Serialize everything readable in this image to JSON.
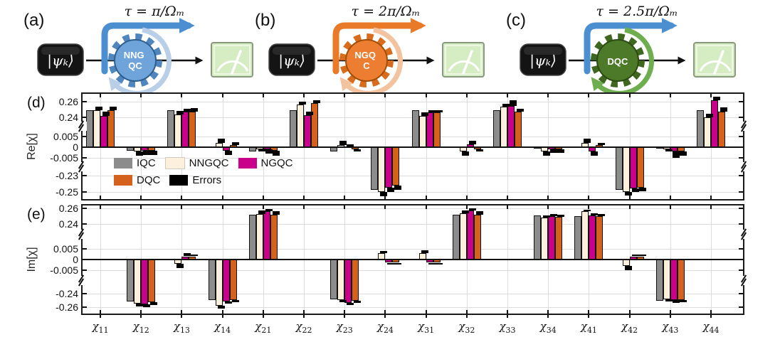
{
  "figure": {
    "background": "#ffffff"
  },
  "diagrams": [
    {
      "label": "(a)",
      "tau": "τ = π/Ωₘ",
      "state": "|ψₖ⟩",
      "gear_lines": [
        "NNG",
        "QC"
      ],
      "colors": {
        "gear": "#6fa4da",
        "teeth": "#4f86bd",
        "edge": "#2e5f8f",
        "arrow": "#4c8fd0",
        "swirl": "#b9cfe8"
      }
    },
    {
      "label": "(b)",
      "tau": "τ = 2π/Ωₘ",
      "state": "|ψₖ⟩",
      "gear_lines": [
        "NGQ",
        "C"
      ],
      "colors": {
        "gear": "#ed7d31",
        "teeth": "#d96c1c",
        "edge": "#a14e07",
        "arrow": "#e87a28",
        "swirl": "#f3c3a0"
      }
    },
    {
      "label": "(c)",
      "tau": "τ = 2.5π/Ωₘ",
      "state": "|ψₖ⟩",
      "gear_lines": [
        "DQC"
      ],
      "colors": {
        "gear": "#4d7a28",
        "teeth": "#3f671f",
        "edge": "#2c4a13",
        "arrow": "#4c8fd0",
        "swirl": "#6fae4e"
      }
    }
  ],
  "legend": {
    "rows": [
      [
        {
          "label": "IQC",
          "color": "#8c8c8c"
        },
        {
          "label": "NNGQC",
          "color": "#fdf0dc"
        },
        {
          "label": "NGQC",
          "color": "#c9008a"
        }
      ],
      [
        {
          "label": "DQC",
          "color": "#d4611c"
        },
        {
          "label": "Errors",
          "color": "#000000"
        }
      ]
    ]
  },
  "panels": [
    {
      "id": "d",
      "label": "(d)",
      "ylabel": "Re[χ]",
      "chart_data": {
        "type": "bar",
        "categories": [
          "χ11",
          "χ12",
          "χ13",
          "χ14",
          "χ21",
          "χ22",
          "χ23",
          "χ24",
          "χ31",
          "χ32",
          "χ33",
          "χ34",
          "χ41",
          "χ42",
          "χ43",
          "χ44"
        ],
        "broken_axis_segments": [
          [
            0.2282,
            0.27
          ],
          [
            -0.00933,
            0.00967
          ],
          [
            -0.2587,
            -0.2196
          ]
        ],
        "yticks": [
          {
            "v": 0.26,
            "label": "0.26"
          },
          {
            "v": 0.24,
            "label": "0.24"
          },
          {
            "v": 0.005,
            "label": "0.005"
          },
          {
            "v": 0,
            "label": "0"
          },
          {
            "v": -0.005,
            "label": "-0.005"
          },
          {
            "v": -0.23,
            "label": "-0.23"
          },
          {
            "v": -0.25,
            "label": "-0.25"
          }
        ],
        "grid": true,
        "legend_position": "inside-left",
        "error_series_name": "Errors",
        "error_color": "#000000",
        "series": [
          {
            "name": "IQC",
            "color": "#8c8c8c",
            "values": [
              0.249,
              -0.0015,
              0.249,
              0.0005,
              -0.002,
              0.249,
              -0.002,
              -0.247,
              0.249,
              0.0005,
              0.249,
              -0.0005,
              0.0005,
              -0.247,
              -0.0005,
              0.249
            ],
            "errors": [
              0,
              0,
              0,
              0,
              0,
              0,
              0,
              0,
              0,
              0,
              0,
              0,
              0,
              0,
              0,
              0
            ]
          },
          {
            "name": "NNGQC",
            "color": "#fdf0dc",
            "values": [
              0.249,
              -0.002,
              0.244,
              0.002,
              -0.001,
              0.256,
              0.001,
              -0.25,
              0.242,
              -0.002,
              0.254,
              -0.002,
              0.002,
              -0.25,
              -0.001,
              0.24
            ],
            "errors": [
              0.005,
              -0.002,
              0.004,
              0.002,
              -0.001,
              0.004,
              0.002,
              -0.005,
              0.004,
              -0.002,
              0.003,
              -0.002,
              0.002,
              -0.004,
              -0.001,
              0.005
            ]
          },
          {
            "name": "NGQC",
            "color": "#c9008a",
            "values": [
              0.242,
              -0.0015,
              0.247,
              -0.0015,
              -0.001,
              0.243,
              0.0005,
              -0.245,
              0.246,
              0.0015,
              0.255,
              -0.001,
              -0.002,
              -0.246,
              -0.002,
              0.262
            ],
            "errors": [
              0.005,
              -0.002,
              0.004,
              -0.002,
              -0.002,
              0.004,
              0.001,
              -0.005,
              0.003,
              0.0015,
              0.007,
              -0.0015,
              -0.002,
              -0.004,
              -0.003,
              0.004
            ]
          },
          {
            "name": "DQC",
            "color": "#d4611c",
            "values": [
              0.249,
              -0.0015,
              0.247,
              0.001,
              -0.0015,
              0.258,
              -0.001,
              -0.242,
              0.246,
              -0.001,
              0.247,
              -0.001,
              0.001,
              -0.245,
              -0.002,
              0.247
            ],
            "errors": [
              0.005,
              -0.002,
              0.005,
              0.0015,
              -0.0025,
              0.004,
              -0.001,
              -0.005,
              0.003,
              -0.001,
              0.004,
              -0.0015,
              0.001,
              -0.004,
              -0.002,
              0.006
            ]
          }
        ]
      }
    },
    {
      "id": "e",
      "label": "(e)",
      "ylabel": "Im[χ]",
      "chart_data": {
        "type": "bar",
        "categories": [
          "χ11",
          "χ12",
          "χ13",
          "χ14",
          "χ21",
          "χ22",
          "χ23",
          "χ24",
          "χ31",
          "χ32",
          "χ33",
          "χ34",
          "χ41",
          "χ42",
          "χ43",
          "χ44"
        ],
        "broken_axis_segments": [
          [
            0.2264,
            0.2636
          ],
          [
            -0.01,
            0.01167
          ],
          [
            -0.2695,
            -0.2211
          ]
        ],
        "yticks": [
          {
            "v": 0.26,
            "label": "0.26"
          },
          {
            "v": 0.24,
            "label": "0.24"
          },
          {
            "v": 0.005,
            "label": "0.005"
          },
          {
            "v": 0,
            "label": "0"
          },
          {
            "v": -0.005,
            "label": "-0.005"
          },
          {
            "v": -0.24,
            "label": "-0.24"
          },
          {
            "v": -0.26,
            "label": "-0.26"
          }
        ],
        "grid": true,
        "legend_position": "none",
        "error_series_name": "Errors",
        "error_color": "#000000",
        "series": [
          {
            "name": "IQC",
            "color": "#8c8c8c",
            "values": [
              0,
              -0.252,
              0,
              -0.25,
              0.252,
              0,
              -0.248,
              0.0005,
              0.0005,
              0.252,
              0,
              0.251,
              0.25,
              0.0005,
              -0.251,
              0
            ],
            "errors": [
              0,
              0,
              0,
              0,
              0,
              0,
              0,
              0,
              0,
              0,
              0,
              0,
              0,
              0,
              0,
              0
            ]
          },
          {
            "name": "NNGQC",
            "color": "#fdf0dc",
            "values": [
              0.0005,
              -0.255,
              -0.002,
              -0.258,
              0.253,
              0.0005,
              -0.25,
              0.003,
              0.003,
              0.254,
              0.0005,
              0.248,
              0.256,
              -0.003,
              -0.248,
              0.0005
            ],
            "errors": [
              0,
              -0.004,
              -0.002,
              -0.004,
              0.004,
              0,
              -0.003,
              0.001,
              0.0015,
              0.003,
              0,
              0.003,
              0.002,
              -0.002,
              -0.004,
              0
            ]
          },
          {
            "name": "NGQC",
            "color": "#c9008a",
            "values": [
              0,
              -0.256,
              0.0015,
              -0.252,
              0.256,
              0,
              -0.254,
              -0.0015,
              -0.0015,
              0.257,
              0,
              0.25,
              0.251,
              0.0015,
              -0.25,
              0
            ],
            "errors": [
              0,
              -0.004,
              0.0015,
              -0.003,
              0.003,
              0,
              -0.003,
              -0.001,
              -0.001,
              0.003,
              0,
              0.003,
              0.003,
              0.001,
              -0.004,
              0
            ]
          },
          {
            "name": "DQC",
            "color": "#d4611c",
            "values": [
              0,
              -0.253,
              0.0015,
              -0.25,
              0.252,
              0,
              -0.251,
              -0.0015,
              -0.0015,
              0.252,
              0,
              0.249,
              0.25,
              0.0015,
              -0.249,
              0
            ],
            "errors": [
              0,
              -0.004,
              0.001,
              -0.003,
              0.004,
              0,
              -0.003,
              -0.001,
              -0.001,
              0.004,
              0,
              0.003,
              0.003,
              0.001,
              -0.004,
              0
            ]
          }
        ]
      }
    }
  ]
}
